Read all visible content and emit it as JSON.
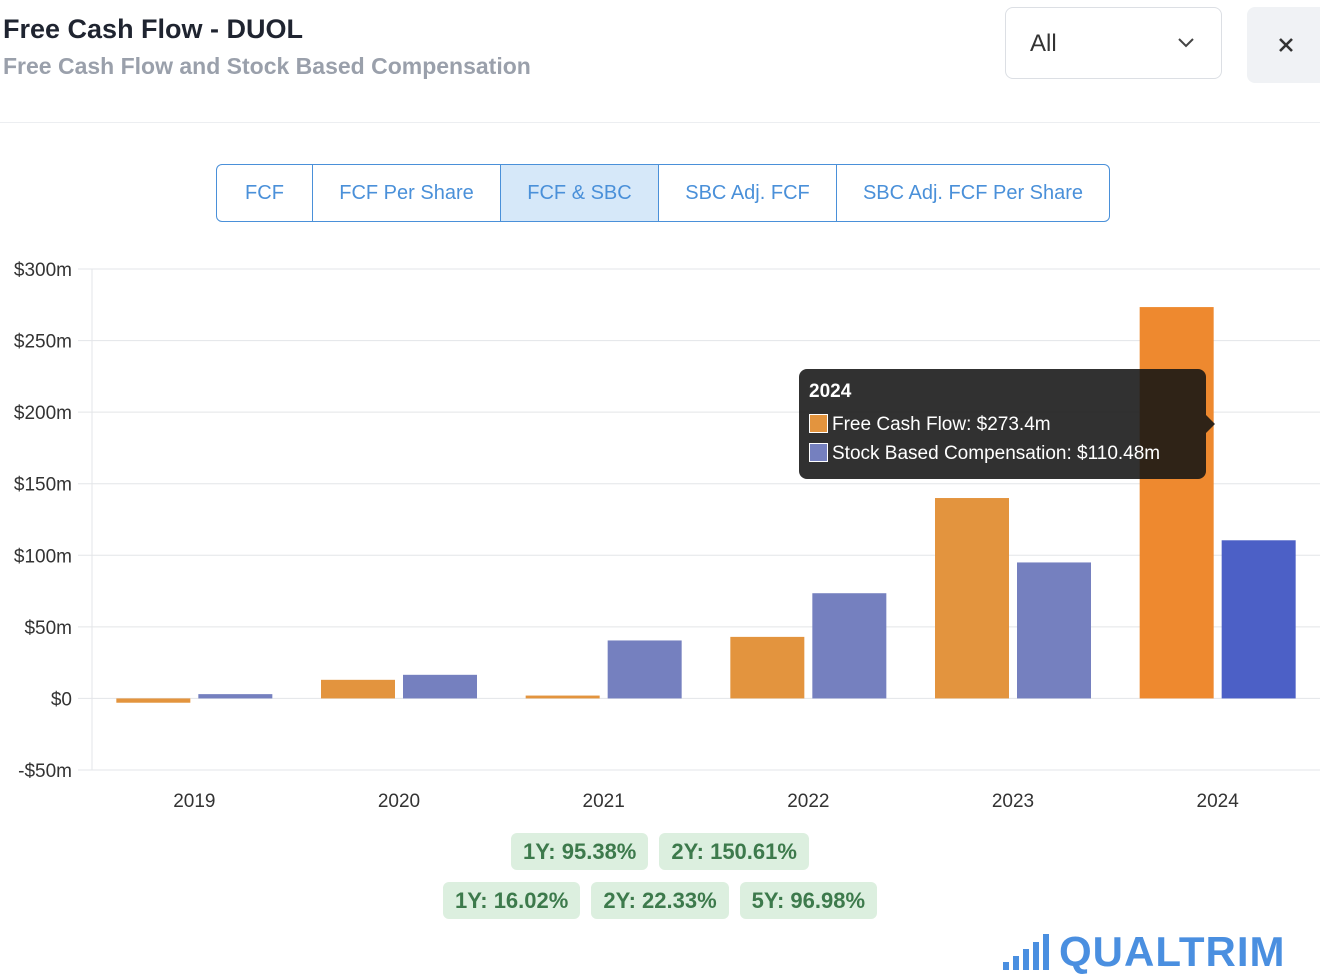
{
  "header": {
    "title": "Free Cash Flow - DUOL",
    "subtitle": "Free Cash Flow and Stock Based Compensation",
    "period": "All"
  },
  "tabs": [
    "FCF",
    "FCF Per Share",
    "FCF & SBC",
    "SBC Adj. FCF",
    "SBC Adj. FCF Per Share"
  ],
  "active_tab": 2,
  "chart_data": {
    "type": "bar",
    "categories": [
      "2019",
      "2020",
      "2021",
      "2022",
      "2023",
      "2024"
    ],
    "series": [
      {
        "name": "Free Cash Flow",
        "color": "#e3943e",
        "values": [
          -3,
          13,
          2,
          43,
          140,
          273.4
        ]
      },
      {
        "name": "Stock Based Compensation",
        "color": "#7580bf",
        "values": [
          3,
          16.5,
          40.5,
          73.5,
          95,
          110.48
        ]
      }
    ],
    "highlight": {
      "category": "2024",
      "colors": [
        "#ee892f",
        "#4c60c6"
      ]
    },
    "y_ticks": [
      -50,
      0,
      50,
      100,
      150,
      200,
      250,
      300
    ],
    "y_tick_labels": [
      "-$50m",
      "$0",
      "$50m",
      "$100m",
      "$150m",
      "$200m",
      "$250m",
      "$300m"
    ],
    "ylim": [
      -50,
      300
    ],
    "grid": true
  },
  "tooltip": {
    "title": "2024",
    "rows": [
      {
        "text": "Free Cash Flow: $273.4m",
        "color": "#e3943e"
      },
      {
        "text": "Stock Based Compensation: $110.48m",
        "color": "#7580bf"
      }
    ]
  },
  "growth": {
    "row1": [
      "1Y: 95.38%",
      "2Y: 150.61%"
    ],
    "row2": [
      "1Y: 16.02%",
      "2Y: 22.33%",
      "5Y: 96.98%"
    ]
  },
  "brand": {
    "name": "QUALTRIM",
    "color": "#4a8fe0"
  },
  "icons": {
    "dropdown": "chevron-down-icon",
    "close": "close-icon",
    "logo": "bar-chart-icon"
  }
}
